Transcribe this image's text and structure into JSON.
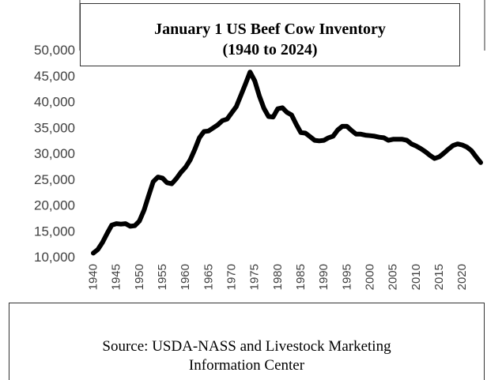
{
  "chart_data": {
    "type": "line",
    "title": "January 1 US Beef Cow Inventory",
    "subtitle": "(1940 to 2024)",
    "x": [
      1940,
      1941,
      1942,
      1943,
      1944,
      1945,
      1946,
      1947,
      1948,
      1949,
      1950,
      1951,
      1952,
      1953,
      1954,
      1955,
      1956,
      1957,
      1958,
      1959,
      1960,
      1961,
      1962,
      1963,
      1964,
      1965,
      1966,
      1967,
      1968,
      1969,
      1970,
      1971,
      1972,
      1973,
      1974,
      1975,
      1976,
      1977,
      1978,
      1979,
      1980,
      1981,
      1982,
      1983,
      1984,
      1985,
      1986,
      1987,
      1988,
      1989,
      1990,
      1991,
      1992,
      1993,
      1994,
      1995,
      1996,
      1997,
      1998,
      1999,
      2000,
      2001,
      2002,
      2003,
      2004,
      2005,
      2006,
      2007,
      2008,
      2009,
      2010,
      2011,
      2012,
      2013,
      2014,
      2015,
      2016,
      2017,
      2018,
      2019,
      2020,
      2021,
      2022,
      2023,
      2024
    ],
    "series": [
      {
        "values": [
          10700,
          11400,
          12800,
          14500,
          16100,
          16400,
          16300,
          16400,
          15900,
          16000,
          16900,
          19000,
          21800,
          24500,
          25400,
          25200,
          24300,
          24100,
          25100,
          26300,
          27300,
          28700,
          30700,
          33000,
          34200,
          34300,
          34900,
          35500,
          36300,
          36600,
          37800,
          39000,
          41200,
          43400,
          45700,
          44000,
          41100,
          38700,
          37100,
          37000,
          38600,
          38800,
          37900,
          37400,
          35600,
          34000,
          33900,
          33200,
          32500,
          32400,
          32500,
          33000,
          33300,
          34500,
          35200,
          35200,
          34400,
          33700,
          33700,
          33500,
          33400,
          33300,
          33100,
          33000,
          32500,
          32700,
          32700,
          32700,
          32500,
          31800,
          31400,
          30900,
          30300,
          29600,
          29000,
          29300,
          30000,
          30800,
          31500,
          31800,
          31600,
          31200,
          30500,
          29300,
          28200
        ]
      }
    ],
    "ylim": [
      10000,
      50000
    ],
    "yticks": [
      "10,000",
      "15,000",
      "20,000",
      "25,000",
      "30,000",
      "35,000",
      "40,000",
      "45,000",
      "50,000"
    ],
    "xticks": [
      "1940",
      "1945",
      "1950",
      "1955",
      "1960",
      "1965",
      "1970",
      "1975",
      "1980",
      "1985",
      "1990",
      "1995",
      "2000",
      "2005",
      "2010",
      "2015",
      "2020"
    ],
    "grid": false,
    "line_color": "#000000",
    "source_line1": "Source: USDA-NASS and Livestock Marketing",
    "source_line2": "Information Center"
  }
}
